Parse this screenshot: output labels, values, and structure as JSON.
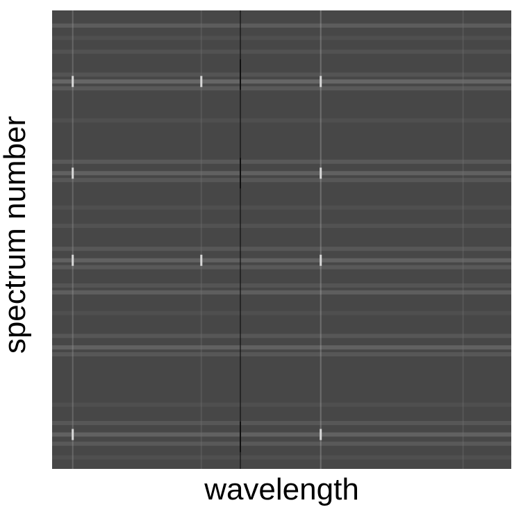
{
  "chart_data": {
    "type": "heatmap",
    "title": "",
    "xlabel": "wavelength",
    "ylabel": "spectrum number",
    "x_tick_labels": [],
    "y_tick_labels": [],
    "colormap": "grayscale",
    "background_level": 0.28,
    "colors": {
      "background": "#474747",
      "bright": "#d8d8d8",
      "dark": "#101010"
    },
    "x_range": [
      0,
      1
    ],
    "y_range": [
      0,
      1
    ],
    "bright_rows": [
      {
        "y": 0.033,
        "intensity": 0.36
      },
      {
        "y": 0.06,
        "intensity": 0.31
      },
      {
        "y": 0.09,
        "intensity": 0.32
      },
      {
        "y": 0.14,
        "intensity": 0.33
      },
      {
        "y": 0.155,
        "intensity": 0.4
      },
      {
        "y": 0.17,
        "intensity": 0.35
      },
      {
        "y": 0.24,
        "intensity": 0.31
      },
      {
        "y": 0.33,
        "intensity": 0.35
      },
      {
        "y": 0.355,
        "intensity": 0.38
      },
      {
        "y": 0.37,
        "intensity": 0.34
      },
      {
        "y": 0.43,
        "intensity": 0.31
      },
      {
        "y": 0.47,
        "intensity": 0.32
      },
      {
        "y": 0.52,
        "intensity": 0.34
      },
      {
        "y": 0.545,
        "intensity": 0.38
      },
      {
        "y": 0.56,
        "intensity": 0.35
      },
      {
        "y": 0.6,
        "intensity": 0.33
      },
      {
        "y": 0.615,
        "intensity": 0.37
      },
      {
        "y": 0.66,
        "intensity": 0.31
      },
      {
        "y": 0.71,
        "intensity": 0.34
      },
      {
        "y": 0.735,
        "intensity": 0.38
      },
      {
        "y": 0.75,
        "intensity": 0.34
      },
      {
        "y": 0.86,
        "intensity": 0.31
      },
      {
        "y": 0.9,
        "intensity": 0.34
      },
      {
        "y": 0.925,
        "intensity": 0.38
      },
      {
        "y": 0.945,
        "intensity": 0.35
      },
      {
        "y": 0.975,
        "intensity": 0.31
      }
    ],
    "emission_columns": [
      {
        "x": 0.045,
        "intensity": 0.62
      },
      {
        "x": 0.325,
        "intensity": 0.45
      },
      {
        "x": 0.585,
        "intensity": 0.72
      },
      {
        "x": 0.895,
        "intensity": 0.45
      }
    ],
    "absorption_column": {
      "x": 0.41,
      "intensity": 0.06
    },
    "emission_spots": [
      {
        "x": 0.045,
        "y": 0.155
      },
      {
        "x": 0.045,
        "y": 0.355
      },
      {
        "x": 0.045,
        "y": 0.545
      },
      {
        "x": 0.045,
        "y": 0.925
      },
      {
        "x": 0.585,
        "y": 0.155
      },
      {
        "x": 0.585,
        "y": 0.355
      },
      {
        "x": 0.585,
        "y": 0.545
      },
      {
        "x": 0.585,
        "y": 0.925
      },
      {
        "x": 0.325,
        "y": 0.155
      },
      {
        "x": 0.325,
        "y": 0.545
      }
    ],
    "absorption_spots": [
      {
        "x": 0.41,
        "y": 0.14
      },
      {
        "x": 0.41,
        "y": 0.355
      },
      {
        "x": 0.41,
        "y": 0.93
      }
    ]
  }
}
